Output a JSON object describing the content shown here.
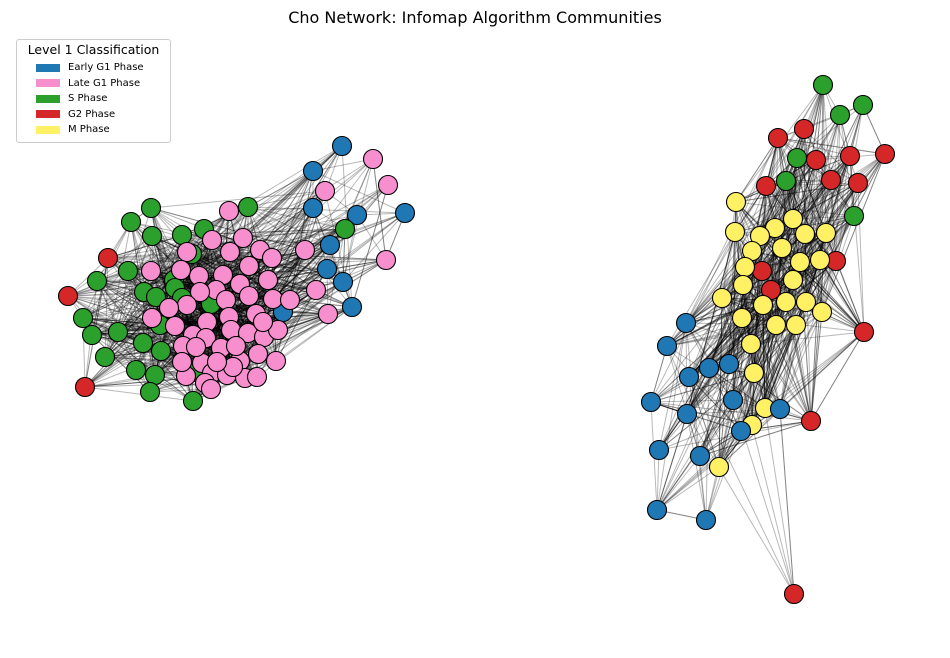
{
  "title": "Cho Network: Infomap Algorithm Communities",
  "legend": {
    "title": "Level 1 Classification",
    "items": [
      {
        "label": "Early G1 Phase",
        "color": "#1f77b4"
      },
      {
        "label": "Late G1 Phase",
        "color": "#f78fcf"
      },
      {
        "label": "S Phase",
        "color": "#2ca02c"
      },
      {
        "label": "G2 Phase",
        "color": "#d62728"
      },
      {
        "label": "M Phase",
        "color": "#fff064"
      }
    ]
  },
  "style": {
    "edge_color": "#000000",
    "node_outline": "#000000"
  }
}
